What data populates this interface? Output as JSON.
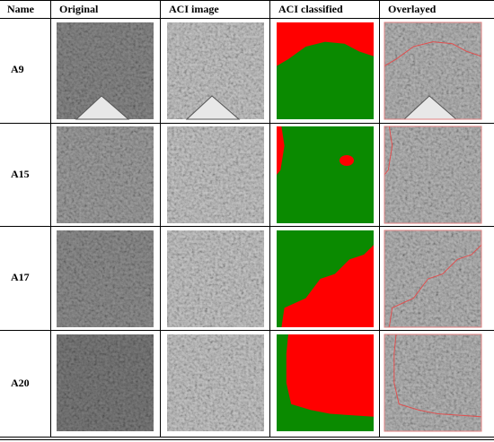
{
  "table": {
    "header": [
      "Name",
      "Original",
      "ACI image",
      "ACI classified",
      "Overlayed"
    ],
    "rows": [
      [
        "A9"
      ],
      [
        "A15"
      ],
      [
        "A17"
      ],
      [
        "A20"
      ]
    ]
  }
}
